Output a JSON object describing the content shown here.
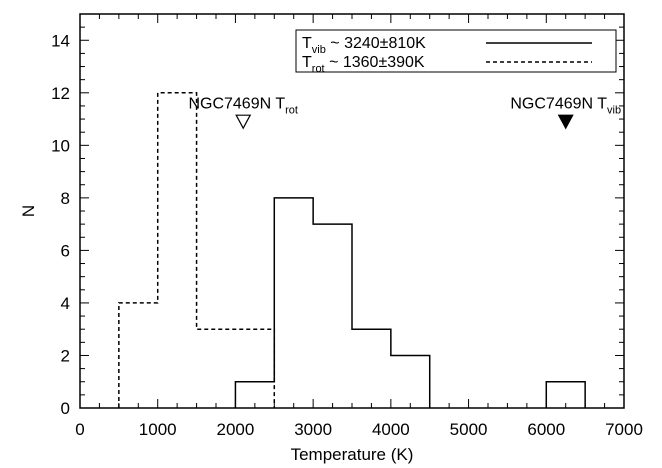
{
  "chart_data": {
    "type": "histogram",
    "title": "",
    "xlabel": "Temperature (K)",
    "ylabel": "N",
    "xlim": [
      0,
      7000
    ],
    "ylim": [
      0,
      15
    ],
    "xticks": [
      0,
      1000,
      2000,
      3000,
      4000,
      5000,
      6000,
      7000
    ],
    "yticks": [
      0,
      2,
      4,
      6,
      8,
      10,
      12,
      14
    ],
    "grid": false,
    "legend_position": "top-right",
    "bin_width": 500,
    "series": [
      {
        "name_main": "T",
        "name_sub": "vib",
        "name_rest": " ~ 3240±810K",
        "line_style": "solid",
        "bins": [
          {
            "x0": 2000,
            "x1": 2500,
            "count": 1
          },
          {
            "x0": 2500,
            "x1": 3000,
            "count": 8
          },
          {
            "x0": 3000,
            "x1": 3500,
            "count": 7
          },
          {
            "x0": 3500,
            "x1": 4000,
            "count": 3
          },
          {
            "x0": 4000,
            "x1": 4500,
            "count": 2
          },
          {
            "x0": 6000,
            "x1": 6500,
            "count": 1
          }
        ]
      },
      {
        "name_main": "T",
        "name_sub": "rot",
        "name_rest": " ~ 1360±390K",
        "line_style": "dashed",
        "bins": [
          {
            "x0": 500,
            "x1": 1000,
            "count": 4
          },
          {
            "x0": 1000,
            "x1": 1500,
            "count": 12
          },
          {
            "x0": 1500,
            "x1": 2500,
            "count": 3
          }
        ]
      }
    ],
    "annotations": [
      {
        "label_main": "NGC7469N T",
        "label_sub": "rot",
        "x": 2100,
        "y": 10.9,
        "marker": "open-down-triangle"
      },
      {
        "label_main": "NGC7469N T",
        "label_sub": "vib",
        "x": 6250,
        "y": 10.9,
        "marker": "filled-down-triangle"
      }
    ]
  }
}
